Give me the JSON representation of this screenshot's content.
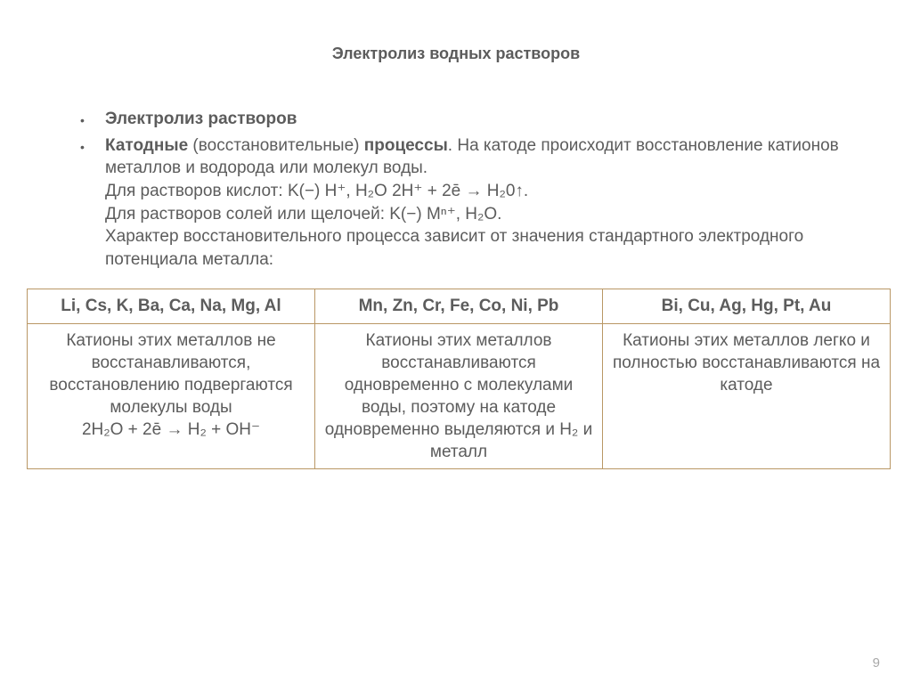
{
  "title": "Электролиз водных растворов",
  "bullet1": "Электролиз растворов",
  "bullet2": {
    "line_a_pre": "Катодные",
    "line_a_mid": " (восстановительные) ",
    "line_a_post": "процессы",
    "line_a_tail": ". На катоде происходит восстановление катионов металлов и водорода или молекул воды.",
    "line_b": "Для растворов кислот: K(−) H⁺, H₂O 2H⁺ + 2ē → H₂0↑.",
    "line_c": "Для растворов солей или щелочей: K(−) Mⁿ⁺, H₂O.",
    "line_d": "Характер восстановительного процесса зависит от значения стандартного электродного потенциала металла:"
  },
  "table": {
    "headers": [
      "Li, Cs, K, Ba, Ca, Na, Mg, Al",
      "Mn, Zn, Cr, Fe, Co, Ni, Pb",
      "Bi, Cu, Ag, Hg, Pt, Au"
    ],
    "row": {
      "c1_text": "Катионы этих металлов не восстанавливаются, восстановлению подвергаются молекулы воды",
      "c1_eq": "2H₂O + 2ē → H₂ + OH⁻",
      "c2": "Катионы этих металлов восстанавливаются одновременно с молекулами воды, поэтому на катоде одновременно выделяются и H₂ и металл",
      "c3": "Катионы этих металлов легко и полностью восстанавливаются на катоде"
    }
  },
  "page_number": "9",
  "colors": {
    "text": "#5c5c5c",
    "border": "#b99765",
    "background": "#ffffff",
    "pagenum": "#a8a8a8"
  },
  "fonts": {
    "title_size": 18,
    "body_size": 19
  }
}
